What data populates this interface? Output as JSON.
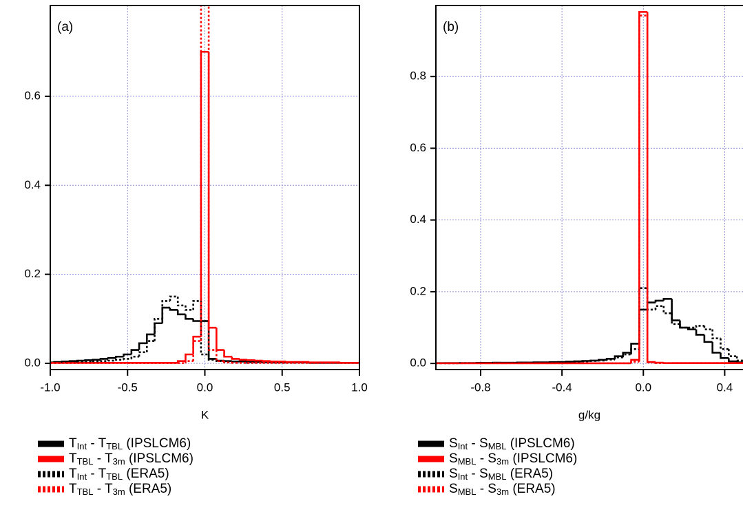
{
  "chart_data": [
    {
      "type": "histogram",
      "title": "(a)",
      "xlabel": "K",
      "xlim": [
        -1,
        1
      ],
      "ylim": [
        -0.014,
        0.804
      ],
      "xticks": [
        {
          "value": -1,
          "label": "-1.0"
        },
        -0.5,
        {
          "value": 0,
          "label": "0.0"
        },
        0.5,
        {
          "value": 1,
          "label": "1.0"
        }
      ],
      "yticks": [
        {
          "value": 0,
          "label": "0.0"
        },
        0.2,
        0.4,
        0.6
      ],
      "grid": true,
      "bins": [
        -1.025,
        -0.975,
        -0.925,
        -0.875,
        -0.825,
        -0.775,
        -0.725,
        -0.675,
        -0.625,
        -0.575,
        -0.525,
        -0.475,
        -0.425,
        -0.375,
        -0.325,
        -0.275,
        -0.225,
        -0.175,
        -0.125,
        -0.075,
        -0.025,
        0.025,
        0.075,
        0.125,
        0.175,
        0.225,
        0.275,
        0.325,
        0.375,
        0.425,
        0.475,
        0.525,
        0.575,
        0.625,
        0.675,
        0.725,
        0.775,
        0.825,
        0.875,
        0.925,
        0.975,
        1.025
      ],
      "series": [
        {
          "name": [
            "T",
            "Int",
            " - T",
            "TBL",
            " (IPSLCM6)"
          ],
          "color": "#000000",
          "style": "solid",
          "values": [
            0.002,
            0.003,
            0.004,
            0.005,
            0.006,
            0.007,
            0.008,
            0.01,
            0.012,
            0.015,
            0.02,
            0.03,
            0.045,
            0.065,
            0.09,
            0.125,
            0.12,
            0.11,
            0.1,
            0.095,
            0.095,
            0.01,
            0.006,
            0.005,
            0.004,
            0.004,
            0.003,
            0.003,
            0.003,
            0.002,
            0.002,
            0.002,
            0.002,
            0.002,
            0.001,
            0.001,
            0.001,
            0.001,
            0.001,
            0.001,
            0.001
          ]
        },
        {
          "name": [
            "T",
            "TBL",
            " - T",
            "3m",
            " (IPSLCM6)"
          ],
          "color": "#ff0000",
          "style": "solid",
          "values": [
            0.001,
            0.001,
            0.001,
            0.001,
            0.001,
            0.001,
            0.001,
            0.001,
            0.001,
            0.001,
            0.001,
            0.001,
            0.001,
            0.001,
            0.001,
            0.001,
            0.001,
            0.005,
            0.02,
            0.06,
            0.7,
            0.08,
            0.03,
            0.015,
            0.01,
            0.008,
            0.007,
            0.006,
            0.005,
            0.004,
            0.004,
            0.003,
            0.003,
            0.003,
            0.002,
            0.002,
            0.002,
            0.002,
            0.001,
            0.001,
            0.001
          ]
        },
        {
          "name": [
            "T",
            "Int",
            " - T",
            "TBL",
            " (ERA5)"
          ],
          "color": "#000000",
          "style": "dotted",
          "values": [
            0.001,
            0.001,
            0.002,
            0.002,
            0.003,
            0.003,
            0.004,
            0.005,
            0.006,
            0.008,
            0.01,
            0.015,
            0.025,
            0.05,
            0.1,
            0.14,
            0.15,
            0.13,
            0.12,
            0.14,
            0.02,
            0.008,
            0.005,
            0.003,
            0.002,
            0.002,
            0.001,
            0.001,
            0.001,
            0.001,
            0.001,
            0.001,
            0.001,
            0.001,
            0.001,
            0.001,
            0.001,
            0.001,
            0.001,
            0.001,
            0.001
          ]
        },
        {
          "name": [
            "T",
            "TBL",
            " - T",
            "3m",
            " (ERA5)"
          ],
          "color": "#ff0000",
          "style": "dotted",
          "values": [
            0.0005,
            0.0005,
            0.0005,
            0.0005,
            0.0005,
            0.0005,
            0.0005,
            0.0005,
            0.0005,
            0.0005,
            0.0005,
            0.0005,
            0.0005,
            0.0005,
            0.0005,
            0.0005,
            0.0005,
            0.0005,
            0.005,
            0.05,
            0.82,
            0.03,
            0.005,
            0.002,
            0.001,
            0.001,
            0.001,
            0.001,
            0.001,
            0.001,
            0.001,
            0.001,
            0.001,
            0.001,
            0.001,
            0.001,
            0.001,
            0.001,
            0.001,
            0.001,
            0.001
          ]
        }
      ]
    },
    {
      "type": "histogram",
      "title": "(b)",
      "xlabel": "g/kg",
      "xlim": [
        -1.02,
        0.49
      ],
      "ylim": [
        -0.017,
        0.998
      ],
      "xticks": [
        -0.8,
        -0.4,
        {
          "value": 0,
          "label": "0.0"
        },
        0.4
      ],
      "yticks": [
        {
          "value": 0,
          "label": "0.0"
        },
        0.2,
        0.4,
        0.6,
        0.8
      ],
      "grid": true,
      "bins": [
        -1.02,
        -0.98,
        -0.94,
        -0.9,
        -0.86,
        -0.82,
        -0.78,
        -0.74,
        -0.7,
        -0.66,
        -0.62,
        -0.58,
        -0.54,
        -0.5,
        -0.46,
        -0.42,
        -0.38,
        -0.34,
        -0.3,
        -0.26,
        -0.22,
        -0.18,
        -0.14,
        -0.1,
        -0.06,
        -0.02,
        0.02,
        0.06,
        0.1,
        0.14,
        0.18,
        0.22,
        0.26,
        0.3,
        0.34,
        0.38,
        0.42,
        0.46,
        0.5
      ],
      "series": [
        {
          "name": [
            "S",
            "Int",
            " - S",
            "MBL",
            " (IPSLCM6)"
          ],
          "color": "#000000",
          "style": "solid",
          "values": [
            0.001,
            0.001,
            0.001,
            0.001,
            0.001,
            0.0015,
            0.0015,
            0.002,
            0.002,
            0.002,
            0.0025,
            0.0025,
            0.003,
            0.003,
            0.0035,
            0.004,
            0.005,
            0.006,
            0.007,
            0.008,
            0.01,
            0.013,
            0.02,
            0.03,
            0.055,
            0.15,
            0.17,
            0.175,
            0.18,
            0.12,
            0.1,
            0.095,
            0.08,
            0.06,
            0.03,
            0.015,
            0.006,
            0.003
          ]
        },
        {
          "name": [
            "S",
            "MBL",
            " - S",
            "3m",
            " (IPSLCM6)"
          ],
          "color": "#ff0000",
          "style": "solid",
          "values": [
            0.0005,
            0.0005,
            0.0005,
            0.0005,
            0.0005,
            0.0005,
            0.0005,
            0.0005,
            0.0005,
            0.0005,
            0.0005,
            0.0005,
            0.0005,
            0.0005,
            0.0005,
            0.0005,
            0.0005,
            0.0005,
            0.0005,
            0.0005,
            0.0005,
            0.0005,
            0.0005,
            0.0005,
            0.01,
            0.98,
            0.004,
            0.002,
            0.001,
            0.001,
            0.001,
            0.001,
            0.001,
            0.001,
            0.001,
            0.001,
            0.001,
            0.001
          ]
        },
        {
          "name": [
            "S",
            "Int",
            " - S",
            "MBL",
            " (ERA5)"
          ],
          "color": "#000000",
          "style": "dotted",
          "values": [
            0.0005,
            0.0005,
            0.0005,
            0.001,
            0.001,
            0.001,
            0.001,
            0.0015,
            0.0015,
            0.0015,
            0.002,
            0.002,
            0.0025,
            0.0025,
            0.003,
            0.003,
            0.004,
            0.005,
            0.006,
            0.007,
            0.008,
            0.011,
            0.017,
            0.025,
            0.04,
            0.21,
            0.15,
            0.16,
            0.14,
            0.11,
            0.1,
            0.1,
            0.105,
            0.095,
            0.07,
            0.04,
            0.02,
            0.008
          ]
        },
        {
          "name": [
            "S",
            "MBL",
            " - S",
            "3m",
            " (ERA5)"
          ],
          "color": "#ff0000",
          "style": "dotted",
          "values": [
            0.0005,
            0.0005,
            0.0005,
            0.0005,
            0.0005,
            0.0005,
            0.0005,
            0.0005,
            0.0005,
            0.0005,
            0.0005,
            0.0005,
            0.0005,
            0.0005,
            0.0005,
            0.0005,
            0.0005,
            0.0005,
            0.0005,
            0.0005,
            0.0005,
            0.0005,
            0.0005,
            0.0005,
            0.005,
            0.97,
            0.003,
            0.001,
            0.001,
            0.001,
            0.001,
            0.001,
            0.001,
            0.001,
            0.001,
            0.001,
            0.001,
            0.001
          ]
        }
      ]
    }
  ]
}
